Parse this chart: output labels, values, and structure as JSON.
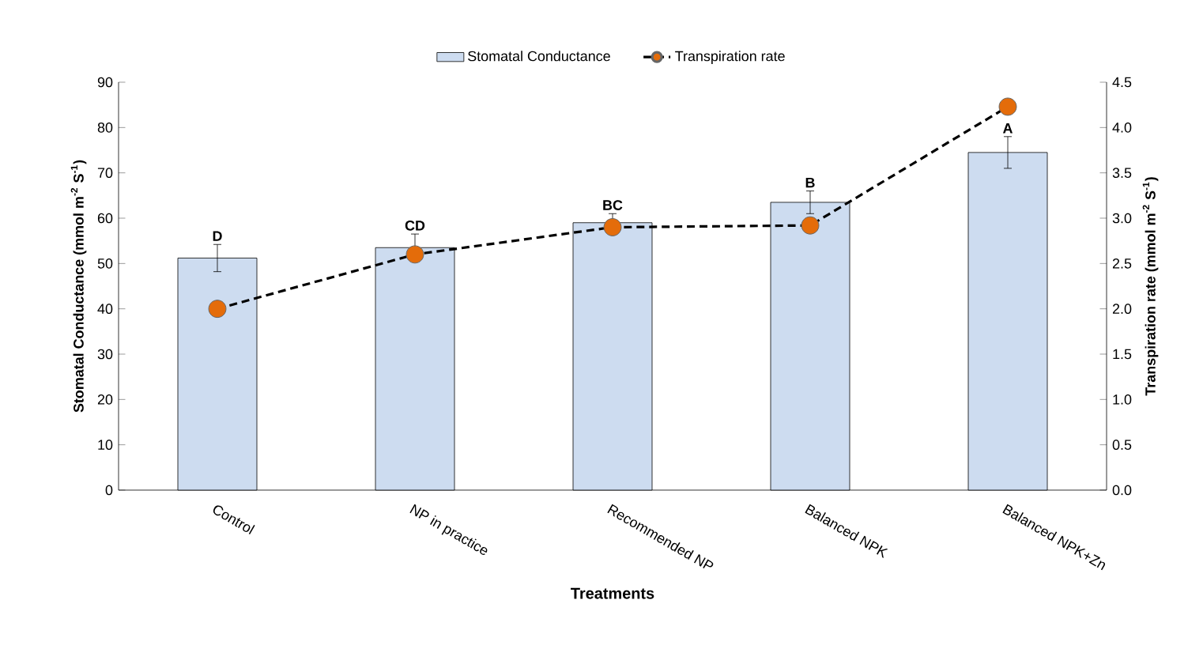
{
  "chart_data": {
    "type": "bar",
    "xlabel": "Treatments",
    "ylabel": "Stomatal Conductance (mmol m$^{-2}$ S$^{-1}$)",
    "y2label": "Transpiration rate (mmol m$^{-2}$ S$^{-1}$)",
    "categories": [
      "Control",
      "NP in practice",
      "Recommended NP",
      "Balanced NPK",
      "Balanced NPK+Zn"
    ],
    "series": [
      {
        "name": "Stomatal Conductance",
        "color": "#cddcf0",
        "values": [
          51.2,
          53.5,
          59,
          63.5,
          74.5
        ],
        "errors": [
          3,
          3,
          2,
          2.5,
          3.5
        ]
      },
      {
        "name": "Transpiration rate",
        "type": "line",
        "axis": "y2",
        "color": "#e46c0a",
        "marker": "circle",
        "line_style": "dashed",
        "values": [
          2.0,
          2.6,
          2.9,
          2.92,
          4.23
        ]
      }
    ],
    "ylim": [
      0,
      90
    ],
    "yticks": [
      0,
      10,
      20,
      30,
      40,
      50,
      60,
      70,
      80,
      90
    ],
    "y2lim": [
      0,
      4.5
    ],
    "y2ticks": [
      {
        "value": 0,
        "label": "0.0"
      },
      {
        "value": 0.5,
        "label": "0.5"
      },
      {
        "value": 1,
        "label": "1.0"
      },
      {
        "value": 1.5,
        "label": "1.5"
      },
      {
        "value": 2,
        "label": "2.0"
      },
      {
        "value": 2.5,
        "label": "2.5"
      },
      {
        "value": 3,
        "label": "3.0"
      },
      {
        "value": 3.5,
        "label": "3.5"
      },
      {
        "value": 4,
        "label": "4.0"
      },
      {
        "value": 4.5,
        "label": "4.5"
      }
    ],
    "annotations": [
      "D",
      "CD",
      "BC",
      "B",
      "A"
    ],
    "grid": false,
    "legend": "top"
  }
}
